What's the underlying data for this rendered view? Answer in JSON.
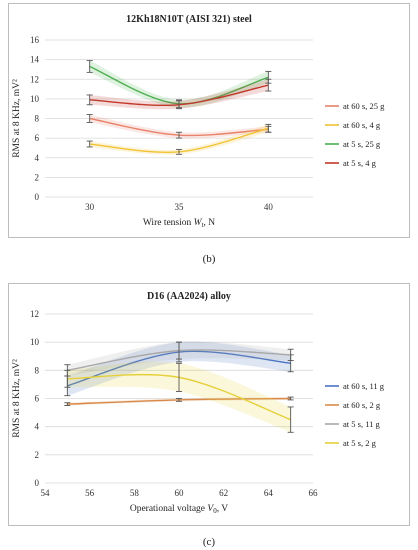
{
  "captions": [
    "(b)",
    "(c)"
  ],
  "chart_data": [
    {
      "type": "line",
      "title": "12Kh18N10T (AISI 321) steel",
      "xlabel": "Wire tension W_t, N",
      "ylabel": "RMS at 8 KHz, mV²",
      "x": [
        30,
        35,
        40
      ],
      "xticks": [
        30,
        35,
        40
      ],
      "xlim": [
        27.5,
        42.5
      ],
      "ylim": [
        0,
        16
      ],
      "yticks": [
        0,
        2,
        4,
        6,
        8,
        10,
        12,
        14,
        16
      ],
      "grid": true,
      "legend_position": "right",
      "series": [
        {
          "name": "at 60 s, 25 g",
          "color": "#e8826a",
          "values": [
            8.0,
            6.3,
            6.9
          ],
          "errors": [
            0.4,
            0.3,
            0.3
          ]
        },
        {
          "name": "at 60 s, 4 g",
          "color": "#f2c233",
          "values": [
            5.4,
            4.6,
            7.0
          ],
          "errors": [
            0.3,
            0.25,
            0.4
          ]
        },
        {
          "name": "at 5 s, 25 g",
          "color": "#4caf50",
          "values": [
            13.3,
            9.5,
            12.2
          ],
          "errors": [
            0.6,
            0.4,
            0.6
          ]
        },
        {
          "name": "at 5 s, 4 g",
          "color": "#c0392b",
          "values": [
            9.9,
            9.4,
            11.4
          ],
          "errors": [
            0.5,
            0.4,
            0.6
          ]
        }
      ]
    },
    {
      "type": "line",
      "title": "D16 (AA2024) alloy",
      "xlabel": "Operational voltage V_0, V",
      "ylabel": "RMS at 8 KHz, mV²",
      "x": [
        55,
        60,
        65
      ],
      "xticks": [
        54,
        56,
        58,
        60,
        62,
        64,
        66
      ],
      "xlim": [
        54,
        66
      ],
      "ylim": [
        0,
        12
      ],
      "yticks": [
        0,
        2,
        4,
        6,
        8,
        10,
        12
      ],
      "grid": true,
      "legend_position": "right",
      "series": [
        {
          "name": "at 60 s, 11 g",
          "color": "#4a74c4",
          "values": [
            6.9,
            9.3,
            8.5
          ],
          "errors": [
            0.7,
            0.7,
            0.6
          ]
        },
        {
          "name": "at 60 s, 2 g",
          "color": "#d98a4a",
          "values": [
            5.6,
            5.9,
            6.0
          ],
          "errors": [
            0.1,
            0.1,
            0.1
          ]
        },
        {
          "name": "at 5 s, 11 g",
          "color": "#a8a8a8",
          "values": [
            8.0,
            9.4,
            9.1
          ],
          "errors": [
            0.4,
            0.6,
            0.4
          ]
        },
        {
          "name": "at 5 s, 2 g",
          "color": "#e6d03a",
          "values": [
            7.4,
            7.5,
            4.5
          ],
          "errors": [
            0.6,
            1.0,
            0.9
          ]
        }
      ]
    }
  ]
}
